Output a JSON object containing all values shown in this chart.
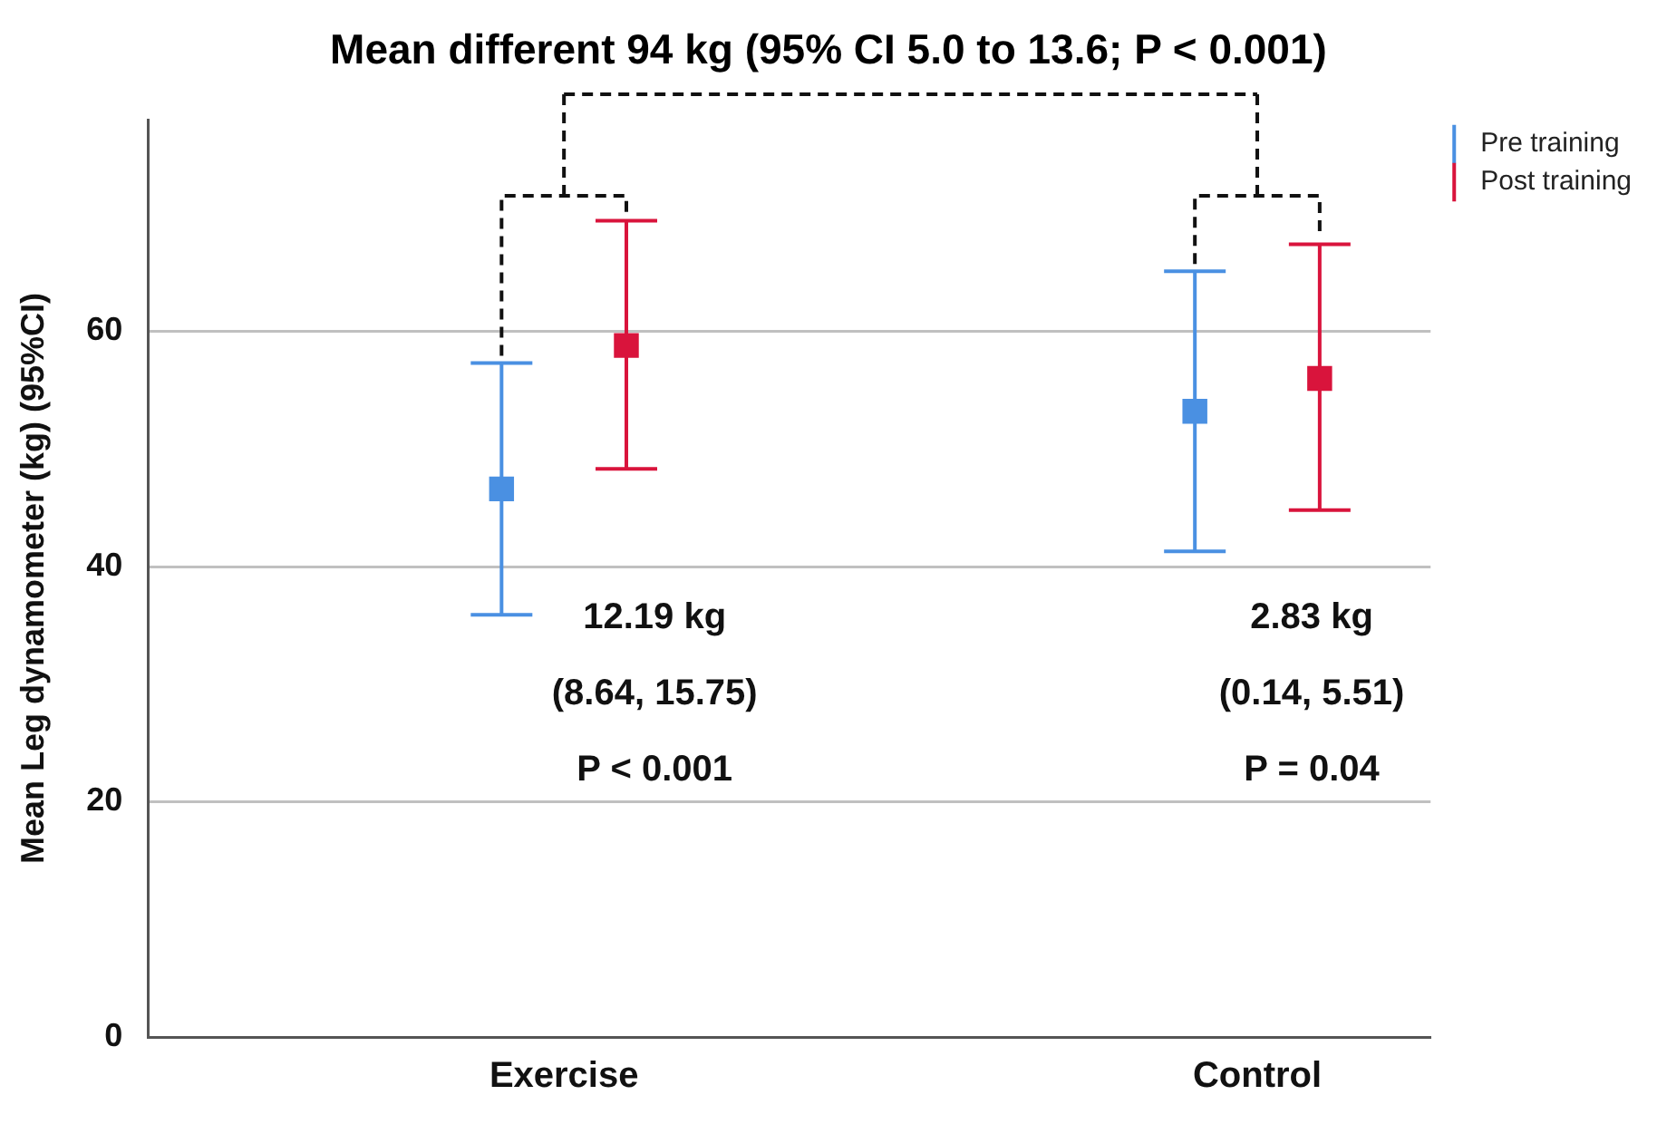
{
  "chart_data": {
    "type": "scatter",
    "title": "Mean different 94 kg (95% CI 5.0 to 13.6; P < 0.001)",
    "ylabel": "Mean Leg dynamometer (kg) (95%CI)",
    "categories": [
      "Exercise",
      "Control"
    ],
    "series": [
      {
        "name": "Pre training",
        "color": "#4a90e2",
        "values": [
          46.6,
          53.2
        ],
        "errors": [
          [
            35.9,
            57.3
          ],
          [
            41.3,
            65.1
          ]
        ]
      },
      {
        "name": "Post training",
        "color": "#d9143c",
        "values": [
          58.8,
          56.0
        ],
        "errors": [
          [
            48.3,
            69.4
          ],
          [
            44.8,
            67.4
          ]
        ]
      }
    ],
    "ylim": [
      0,
      78
    ],
    "yticks": [
      0,
      20,
      40,
      60
    ],
    "grid": "y",
    "legend": "top right",
    "marker": "square",
    "annotations": [
      "12.19 kg",
      "(8.64, 15.75)",
      "P < 0.001",
      "2.83 kg",
      "(0.14, 5.51)",
      "P = 0.04"
    ]
  }
}
